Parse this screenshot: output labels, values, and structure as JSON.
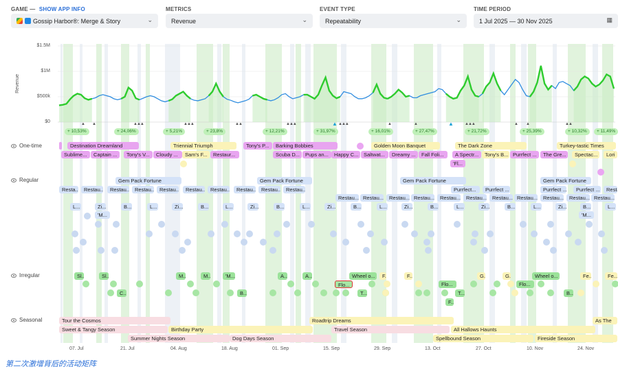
{
  "filters": {
    "game": {
      "label": "GAME — ",
      "link": "SHOW APP INFO",
      "value": "Gossip Harbor®: Merge & Story"
    },
    "metrics": {
      "label": "METRICS",
      "value": "Revenue"
    },
    "event_type": {
      "label": "EVENT TYPE",
      "value": "Repeatability"
    },
    "time_period": {
      "label": "TIME PERIOD",
      "value": "1 Jul 2025 — 30 Nov 2025"
    }
  },
  "chart_data": {
    "type": "line",
    "ylabel": "Revenue",
    "yticks": [
      "$1.5M",
      "$1M",
      "$500k",
      "$0"
    ],
    "ylim": [
      0,
      1500000
    ],
    "xticks": [
      "07. Jul",
      "21. Jul",
      "04. Aug",
      "18. Aug",
      "01. Sep",
      "15. Sep",
      "29. Sep",
      "13. Oct",
      "27. Oct",
      "10. Nov",
      "24. Nov"
    ],
    "x_days": [
      0,
      1,
      2,
      3,
      4,
      5,
      6,
      7,
      8,
      9,
      10,
      11,
      12,
      13,
      14,
      15,
      16,
      17,
      18,
      19,
      20,
      21,
      22,
      23,
      24,
      25,
      26,
      27,
      28,
      29,
      30,
      31,
      32,
      33,
      34,
      35,
      36,
      37,
      38,
      39,
      40,
      41,
      42,
      43,
      44,
      45,
      46,
      47,
      48,
      49,
      50,
      51,
      52,
      53,
      54,
      55,
      56,
      57,
      58,
      59,
      60,
      61,
      62,
      63,
      64,
      65,
      66,
      67,
      68,
      69,
      70,
      71,
      72,
      73,
      74,
      75,
      76,
      77,
      78,
      79,
      80,
      81,
      82,
      83,
      84,
      85,
      86,
      87,
      88,
      89,
      90,
      91,
      92,
      93,
      94,
      95,
      96,
      97,
      98,
      99,
      100,
      101,
      102,
      103,
      104,
      105,
      106,
      107,
      108,
      109,
      110,
      111,
      112,
      113,
      114,
      115,
      116,
      117,
      118,
      119,
      120,
      121,
      122,
      123,
      124,
      125,
      126,
      127,
      128,
      129,
      130,
      131,
      132,
      133,
      134,
      135,
      136,
      137,
      138,
      139,
      140,
      141,
      142,
      143,
      144,
      145,
      146,
      147,
      148,
      149,
      150,
      151,
      152
    ],
    "series": [
      {
        "name": "Revenue",
        "values": [
          330000,
          340000,
          360000,
          450000,
          520000,
          560000,
          540000,
          470000,
          440000,
          460000,
          480000,
          520000,
          540000,
          520000,
          500000,
          460000,
          440000,
          460000,
          500000,
          680000,
          620000,
          470000,
          440000,
          470000,
          500000,
          520000,
          500000,
          460000,
          420000,
          400000,
          420000,
          450000,
          520000,
          560000,
          600000,
          520000,
          460000,
          430000,
          420000,
          440000,
          460000,
          520000,
          600000,
          760000,
          600000,
          500000,
          450000,
          430000,
          400000,
          380000,
          400000,
          420000,
          450000,
          520000,
          540000,
          500000,
          460000,
          440000,
          420000,
          440000,
          480000,
          540000,
          560000,
          500000,
          460000,
          480000,
          500000,
          540000,
          540000,
          500000,
          460000,
          540000,
          720000,
          880000,
          620000,
          520000,
          470000,
          500000,
          600000,
          580000,
          560000,
          500000,
          460000,
          460000,
          480000,
          520000,
          580000,
          740000,
          560000,
          480000,
          460000,
          500000,
          560000,
          640000,
          580000,
          500000,
          520000,
          480000,
          480000,
          520000,
          540000,
          560000,
          580000,
          600000,
          660000,
          640000,
          560000,
          500000,
          460000,
          480000,
          620000,
          720000,
          900000,
          640000,
          520000,
          500000,
          560000,
          700000,
          780000,
          960000,
          760000,
          620000,
          540000,
          640000,
          740000,
          840000,
          780000,
          640000,
          520000,
          500000,
          600000,
          780000,
          1110000,
          760000,
          640000,
          720000,
          660000,
          780000,
          800000,
          760000,
          720000,
          620000,
          700000,
          840000,
          900000,
          860000,
          760000,
          700000,
          740000,
          820000,
          940000,
          900000,
          660000
        ]
      }
    ],
    "surges": [
      "+ 10,53%",
      "+ 24,06%",
      "+ 5,21%",
      "+ 23,8%",
      "+ 12,21%",
      "+ 31,97%",
      "+ 16,01%",
      "+ 27,47%",
      "+ 21,72%",
      "+ 25,39%",
      "+ 10,32%",
      "+ 11,49%"
    ]
  },
  "rows": {
    "one_time": "One-time",
    "regular": "Regular",
    "irregular": "Irregular",
    "seasonal": "Seasonal"
  },
  "one_time_events": {
    "r1": [
      "Destination Dreamland",
      "Triennial Triumph",
      "Tony's P...",
      "Barking Bobbies",
      "Golden Moon Banquet",
      "The Dark Zone",
      "Turkey-tastic Times"
    ],
    "r2": [
      "Sublime...",
      "Captain ...",
      "Tony's V...",
      "Cloudy ...",
      "Sam's F...",
      "Restaur...",
      "Scuba D...",
      "Pups an...",
      "Happy C...",
      "Saltwat...",
      "Dreamy ...",
      "Fall Foli...",
      "A Spectr...",
      "Tony's B...",
      "Purrfect ...",
      "The Gre...",
      "Spectac...",
      "Lori"
    ],
    "r3": [
      "'Fl..."
    ]
  },
  "regular_events": {
    "r1": [
      "Gem Pack Fortune",
      "Gem Pack Fortune",
      "Gem Pack Fortune",
      "Gem Pack Fortune"
    ],
    "r2": [
      "Resta...",
      "Restau...",
      "Restau...",
      "Restau...",
      "Restau...",
      "Restau...",
      "Restau...",
      "Restau...",
      "Restau...",
      "Restau...",
      "Purrfect...",
      "Purrfect ...",
      "Purrfect ...",
      "Purrfect ...",
      "Restau..."
    ],
    "r3": [
      "Restau...",
      "Restau...",
      "Restau...",
      "Restau...",
      "Restau...",
      "Restau...",
      "Restau...",
      "Restau...",
      "Restau...",
      "Restau...",
      "Restau..."
    ],
    "r4": [
      "L...",
      "Zi...",
      "B...",
      "L...",
      "Zi...",
      "B...",
      "L...",
      "Zi...",
      "B...",
      "L...",
      "Zi...",
      "B...",
      "L...",
      "Zi...",
      "B...",
      "L...",
      "Zi...",
      "B...",
      "L...",
      "Zi...",
      "B...",
      "L..."
    ],
    "r5": [
      "'M...",
      "'M..."
    ]
  },
  "irregular_events": {
    "r1": [
      "Sl...",
      "Sl...",
      "M...",
      "M...",
      "'M...",
      "A...",
      "A...",
      "Wheel o...",
      "F...",
      "F...",
      "G...",
      "G...",
      "Wheel o...",
      "Fe...",
      "Fe..."
    ],
    "r2": [
      "Flo...",
      "Flo...",
      "Flo..."
    ],
    "r3": [
      "C...",
      "B...",
      "T...",
      "T...",
      "B..."
    ],
    "r4": [
      "F..."
    ]
  },
  "seasonal_events": [
    "Tour the Cosmos",
    "Roadtrip Dreams",
    "As The",
    "Sweet & Tangy Season",
    "Birthday Party",
    "Travel Season",
    "All Hallows Haunts",
    "Summer Nights Season",
    "Dog Days Season",
    "Spellbound Season",
    "Fireside Season"
  ],
  "caption": "第二次激增背后的活动矩阵"
}
